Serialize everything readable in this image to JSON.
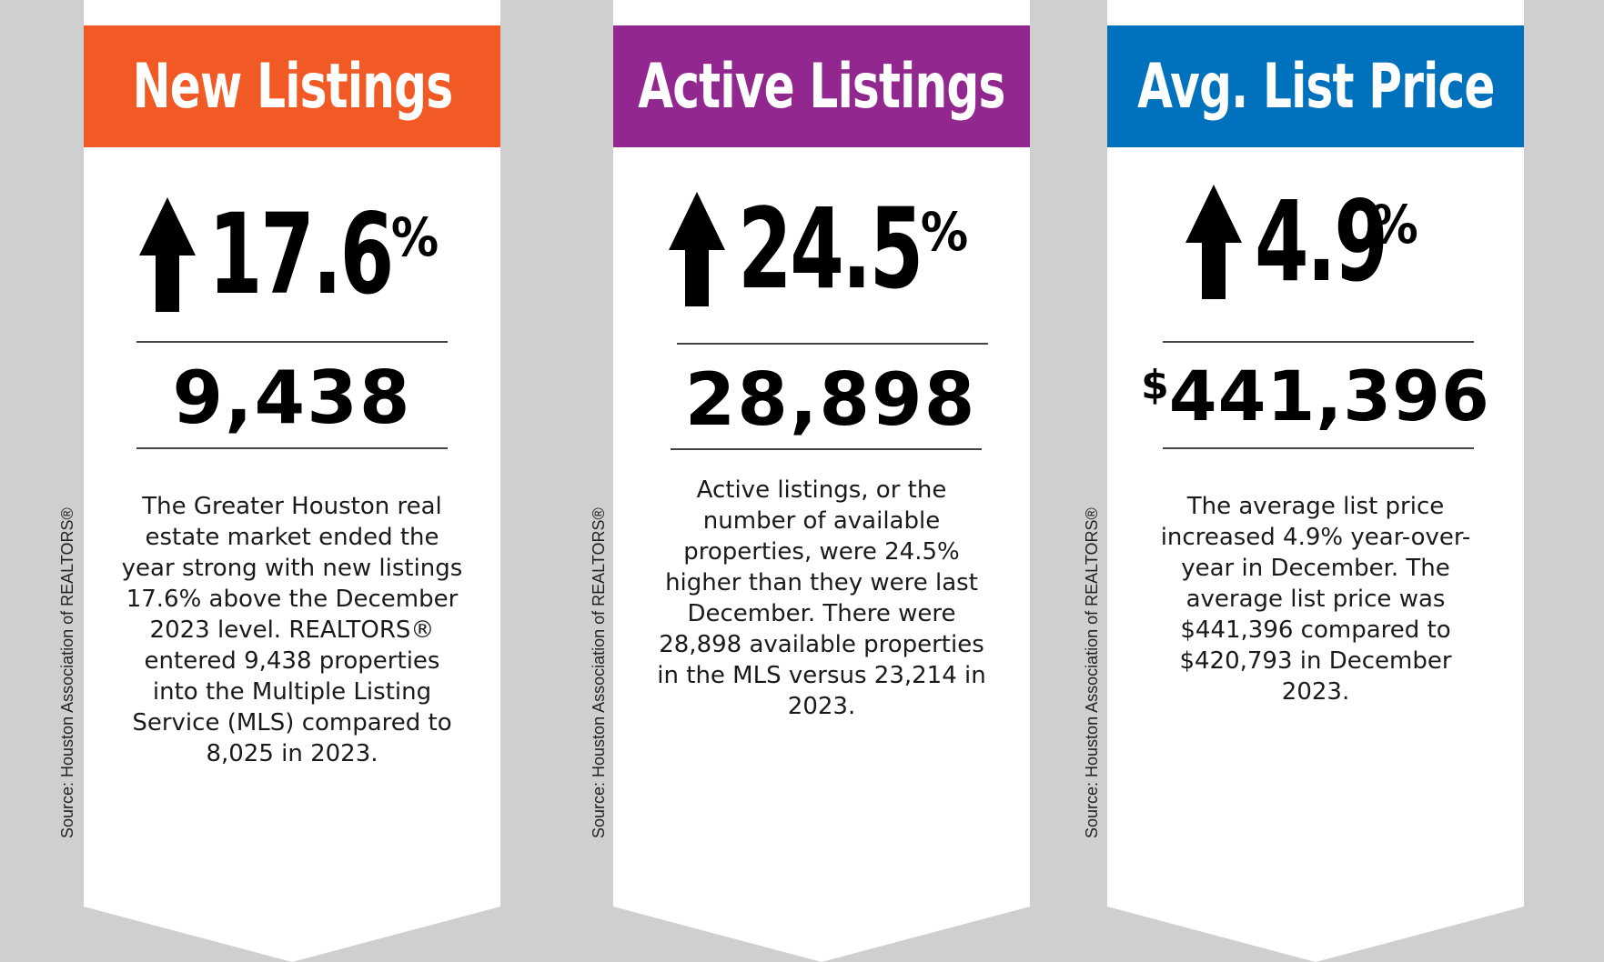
{
  "colors": {
    "orange": "#f15a24",
    "purple": "#92278f",
    "blue": "#0071bc",
    "background": "#cfcfcf"
  },
  "source_label": "Source: Houston Association of REALTORS®",
  "panels": [
    {
      "title": "New Listings",
      "change": "17.6",
      "percent_sign": "%",
      "arrow_icon": "up-arrow-icon",
      "value_prefix": "",
      "value": "9,438",
      "description": "The Greater Houston real estate market ended the year strong with new listings 17.6% above the December 2023 level. REALTORS® entered 9,438 properties into the Multiple Listing Service (MLS) compared to 8,025 in 2023."
    },
    {
      "title": "Active Listings",
      "change": "24.5",
      "percent_sign": "%",
      "arrow_icon": "up-arrow-icon",
      "value_prefix": "",
      "value": "28,898",
      "description": "Active listings, or the number of available properties, were 24.5% higher than they were last December. There were 28,898 available properties in the MLS versus 23,214 in 2023."
    },
    {
      "title": "Avg. List Price",
      "change": "4.9",
      "percent_sign": "%",
      "arrow_icon": "up-arrow-icon",
      "value_prefix": "$",
      "value": "441,396",
      "description": "The average list price increased 4.9% year-over-year in December. The average list price was $441,396 compared to $420,793 in December 2023."
    }
  ]
}
